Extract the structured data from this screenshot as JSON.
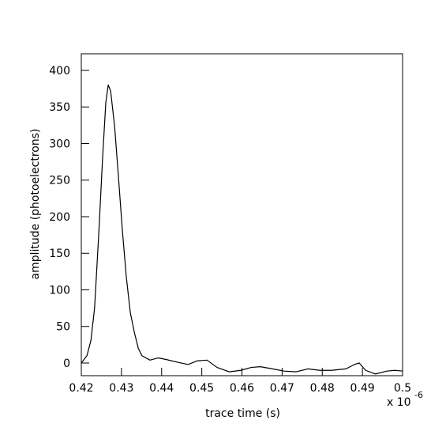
{
  "chart_data": {
    "type": "line",
    "x_label": "trace time (s)",
    "y_label": "amplitude (photoelectrons)",
    "x_scale_base": "x 10",
    "x_scale_exponent": "-6",
    "color": "#000000",
    "xlim": [
      0.42,
      0.5
    ],
    "ylim": [
      -17.3,
      422.7
    ],
    "xticks": [
      0.42,
      0.43,
      0.44,
      0.45,
      0.46,
      0.47,
      0.48,
      0.49,
      0.5
    ],
    "yticks": [
      0,
      50,
      100,
      150,
      200,
      250,
      300,
      350,
      400
    ],
    "x": [
      0.42,
      0.4214,
      0.4224,
      0.4233,
      0.4243,
      0.4253,
      0.4261,
      0.4267,
      0.4273,
      0.4283,
      0.4292,
      0.4302,
      0.4312,
      0.4322,
      0.4332,
      0.4342,
      0.4351,
      0.4371,
      0.4391,
      0.441,
      0.444,
      0.4466,
      0.4489,
      0.4513,
      0.4538,
      0.4568,
      0.4597,
      0.4623,
      0.4646,
      0.4676,
      0.4705,
      0.4735,
      0.4764,
      0.4794,
      0.4823,
      0.4859,
      0.488,
      0.4892,
      0.4908,
      0.4932,
      0.4961,
      0.498,
      0.5
    ],
    "values": [
      0,
      10,
      31,
      75,
      172,
      280,
      356,
      380,
      372,
      323,
      258,
      183,
      118,
      69,
      42,
      20,
      10,
      4,
      7,
      5,
      1,
      -2,
      3,
      4,
      -6,
      -12,
      -10,
      -6,
      -5,
      -8,
      -11,
      -12,
      -8,
      -10,
      -10,
      -8,
      -2,
      0,
      -10,
      -15,
      -11,
      -10,
      -11
    ]
  }
}
